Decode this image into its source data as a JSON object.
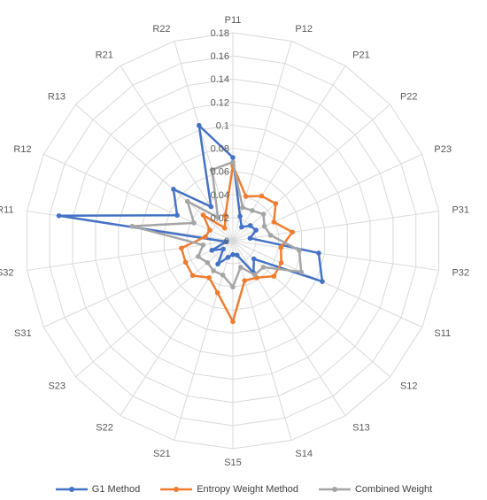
{
  "chart_data": {
    "type": "radar",
    "categories": [
      "P11",
      "P12",
      "P21",
      "P22",
      "P23",
      "P31",
      "P32",
      "S11",
      "S12",
      "S13",
      "S14",
      "S15",
      "S21",
      "S22",
      "S23",
      "S31",
      "S32",
      "R11",
      "R12",
      "R13",
      "R21",
      "R22"
    ],
    "rlim": [
      0,
      0.18
    ],
    "ticks": [
      0,
      0.02,
      0.04,
      0.06,
      0.08,
      0.1,
      0.12,
      0.14,
      0.16,
      0.18
    ],
    "tick_labels": [
      "0",
      "0.02",
      "0.04",
      "0.06",
      "0.08",
      "0.1",
      "0.12",
      "0.14",
      "0.16",
      "0.18"
    ],
    "grid": true,
    "legend_position": "bottom",
    "series": [
      {
        "name": "G1 Method",
        "color": "#4472C4",
        "values": [
          0.072,
          0.022,
          0.014,
          0.02,
          0.022,
          0.015,
          0.075,
          0.085,
          0.024,
          0.033,
          0.013,
          0.012,
          0.015,
          0.024,
          0.011,
          0.02,
          0.006,
          0.152,
          0.053,
          0.068,
          0.035,
          0.104
        ]
      },
      {
        "name": "Entropy Weight Method",
        "color": "#ED7D31",
        "values": [
          0.065,
          0.04,
          0.046,
          0.049,
          0.039,
          0.052,
          0.042,
          0.046,
          0.047,
          0.038,
          0.036,
          0.07,
          0.047,
          0.038,
          0.046,
          0.045,
          0.045,
          0.024,
          0.022,
          0.034,
          0.013,
          0.023
        ]
      },
      {
        "name": "Combined Weight",
        "color": "#A5A5A5",
        "values": [
          0.068,
          0.03,
          0.031,
          0.035,
          0.03,
          0.033,
          0.058,
          0.065,
          0.035,
          0.035,
          0.024,
          0.04,
          0.031,
          0.031,
          0.029,
          0.033,
          0.026,
          0.088,
          0.037,
          0.052,
          0.024,
          0.064
        ]
      }
    ]
  }
}
